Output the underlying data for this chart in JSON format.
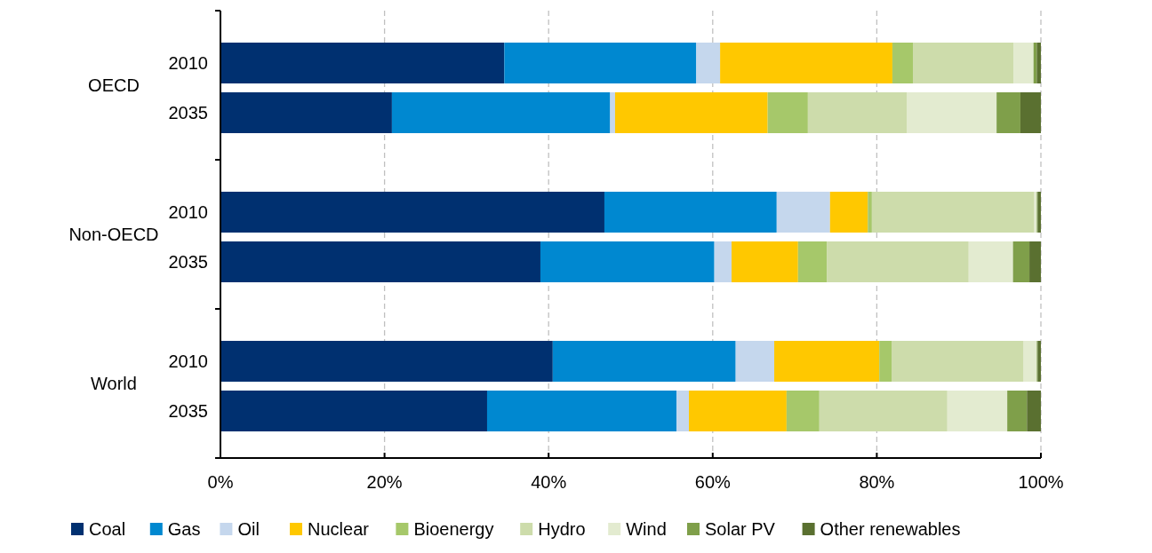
{
  "chart_data": {
    "type": "bar",
    "orientation": "horizontal",
    "stacked": true,
    "categories": [
      "2010",
      "2035",
      "2010",
      "2035",
      "2010",
      "2035"
    ],
    "annotations": [
      "OECD",
      "Non-OECD",
      "World"
    ],
    "xlim": [
      0,
      100
    ],
    "xticks": [
      {
        "value": 0,
        "label": "0%"
      },
      {
        "value": 20,
        "label": "20%"
      },
      {
        "value": 40,
        "label": "40%"
      },
      {
        "value": 60,
        "label": "60%"
      },
      {
        "value": 80,
        "label": "80%"
      },
      {
        "value": 100,
        "label": "100%"
      }
    ],
    "grid": "x",
    "legend": "bottom",
    "series": [
      {
        "name": "Coal",
        "color": "#003070",
        "values": [
          34.6,
          20.9,
          46.8,
          39.0,
          40.5,
          32.5
        ]
      },
      {
        "name": "Gas",
        "color": "#0088d0",
        "values": [
          23.4,
          26.6,
          21.0,
          21.2,
          22.3,
          23.1
        ]
      },
      {
        "name": "Oil",
        "color": "#c5d7ed",
        "values": [
          2.9,
          0.6,
          6.5,
          2.1,
          4.7,
          1.5
        ]
      },
      {
        "name": "Nuclear",
        "color": "#ffc800",
        "values": [
          21.0,
          18.6,
          4.6,
          8.1,
          12.8,
          11.9
        ]
      },
      {
        "name": "Bioenergy",
        "color": "#a6c86a",
        "values": [
          2.5,
          4.9,
          0.5,
          3.5,
          1.5,
          4.0
        ]
      },
      {
        "name": "Hydro",
        "color": "#cddcab",
        "values": [
          12.3,
          12.1,
          19.8,
          17.3,
          16.1,
          15.6
        ]
      },
      {
        "name": "Wind",
        "color": "#e3ebd0",
        "values": [
          2.4,
          10.9,
          0.3,
          5.4,
          1.6,
          7.3
        ]
      },
      {
        "name": "Solar PV",
        "color": "#7f9f4a",
        "values": [
          0.4,
          2.9,
          0.1,
          2.0,
          0.1,
          2.4
        ]
      },
      {
        "name": "Other renewables",
        "color": "#5a7030",
        "values": [
          0.5,
          2.5,
          0.4,
          1.4,
          0.4,
          1.7
        ]
      }
    ]
  }
}
